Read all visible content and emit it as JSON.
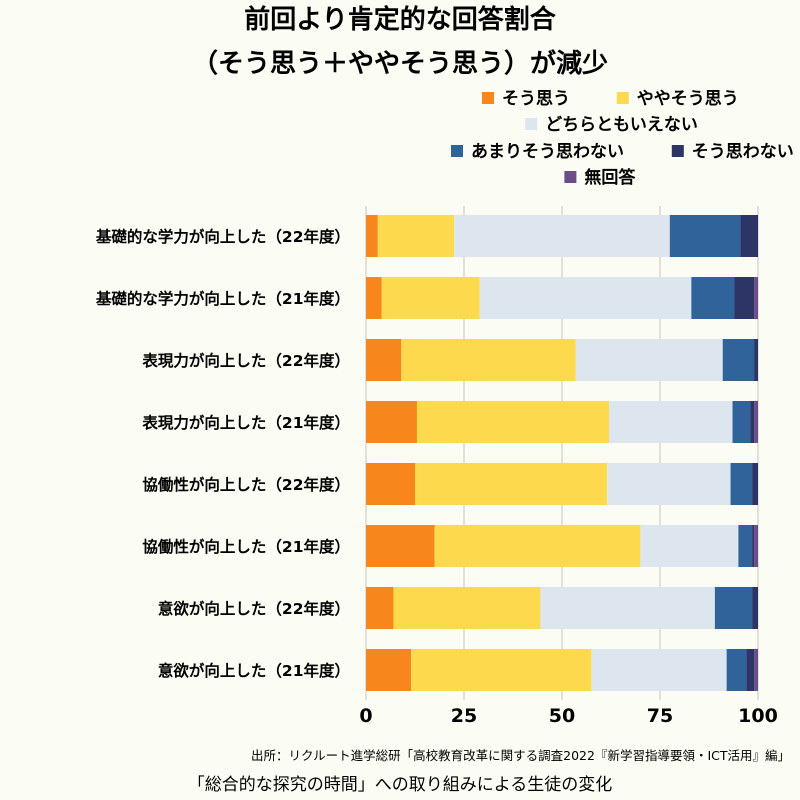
{
  "chart_data": {
    "type": "bar",
    "orientation": "horizontal",
    "stacked": true,
    "title_lines": [
      "前回より肯定的な回答割合",
      "（そう思う＋ややそう思う）が減少"
    ],
    "categories": [
      "基礎的な学力が向上した（22年度）",
      "基礎的な学力が向上した（21年度）",
      "表現力が向上した（22年度）",
      "表現力が向上した（21年度）",
      "協働性が向上した（22年度）",
      "協働性が向上した（21年度）",
      "意欲が向上した（22年度）",
      "意欲が向上した（21年度）"
    ],
    "series": [
      {
        "name": "そう思う",
        "color": "#f7861c",
        "values": [
          3,
          4,
          9,
          13,
          12.5,
          17.5,
          7,
          11.5
        ]
      },
      {
        "name": "ややそう思う",
        "color": "#fdd94d",
        "values": [
          19.5,
          25,
          44.5,
          49,
          49,
          52.5,
          37.5,
          46
        ]
      },
      {
        "name": "どちらともいえない",
        "color": "#dde6ee",
        "values": [
          55,
          54,
          37.5,
          31.5,
          31.5,
          25,
          44.5,
          34.5
        ]
      },
      {
        "name": "あまりそう思わない",
        "color": "#2f6399",
        "values": [
          18,
          11,
          8,
          4.5,
          5.5,
          3.5,
          9.5,
          5
        ]
      },
      {
        "name": "そう思わない",
        "color": "#2c3566",
        "values": [
          4.5,
          5,
          1,
          1,
          1.5,
          0.5,
          1.5,
          2
        ]
      },
      {
        "name": "無回答",
        "color": "#6b4d8a",
        "values": [
          0,
          1,
          0,
          1,
          0,
          1,
          0,
          1
        ]
      }
    ],
    "xlim": [
      0,
      100
    ],
    "xticks": [
      0,
      25,
      50,
      75,
      100
    ],
    "grid": true,
    "legend_position": "top-right",
    "source": "出所：リクルート進学総研「高校教育改革に関する調査2022『新学習指導要領・ICT活用』編」",
    "footer": "「総合的な探究の時間」への取り組みによる生徒の変化"
  }
}
